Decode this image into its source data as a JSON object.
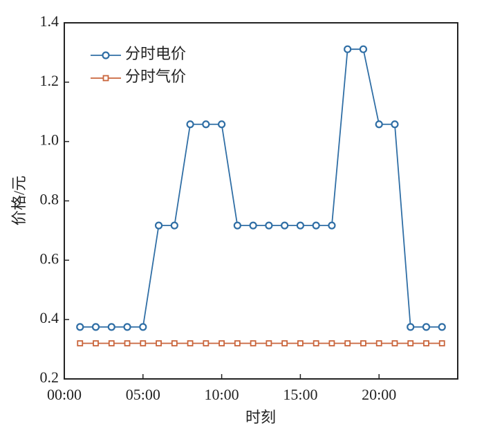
{
  "chart_data": {
    "type": "line",
    "x_label": "时刻",
    "y_label": "价格/元",
    "x": [
      1,
      2,
      3,
      4,
      5,
      6,
      7,
      8,
      9,
      10,
      11,
      12,
      13,
      14,
      15,
      16,
      17,
      18,
      19,
      20,
      21,
      22,
      23,
      24
    ],
    "series": [
      {
        "name": "分时电价",
        "color": "#2f6ea5",
        "marker": "circle",
        "values": [
          0.375,
          0.375,
          0.375,
          0.375,
          0.375,
          0.717,
          0.717,
          1.058,
          1.058,
          1.058,
          0.717,
          0.717,
          0.717,
          0.717,
          0.717,
          0.717,
          0.717,
          1.311,
          1.311,
          1.058,
          1.058,
          0.375,
          0.375,
          0.375
        ]
      },
      {
        "name": "分时气价",
        "color": "#c9643b",
        "marker": "square",
        "values": [
          0.32,
          0.32,
          0.32,
          0.32,
          0.32,
          0.32,
          0.32,
          0.32,
          0.32,
          0.32,
          0.32,
          0.32,
          0.32,
          0.32,
          0.32,
          0.32,
          0.32,
          0.32,
          0.32,
          0.32,
          0.32,
          0.32,
          0.32,
          0.32
        ]
      }
    ],
    "xlim": [
      0,
      25
    ],
    "xticks": [
      {
        "value": 0,
        "label": "00:00"
      },
      {
        "value": 5,
        "label": "05:00"
      },
      {
        "value": 10,
        "label": "10:00"
      },
      {
        "value": 15,
        "label": "15:00"
      },
      {
        "value": 20,
        "label": "20:00"
      }
    ],
    "ylim": [
      0.2,
      1.4
    ],
    "yticks": [
      0.2,
      0.4,
      0.6,
      0.8,
      {
        "value": 1,
        "label": "1.0"
      },
      1.2,
      1.4
    ],
    "legend": "upper-left",
    "grid": false
  }
}
